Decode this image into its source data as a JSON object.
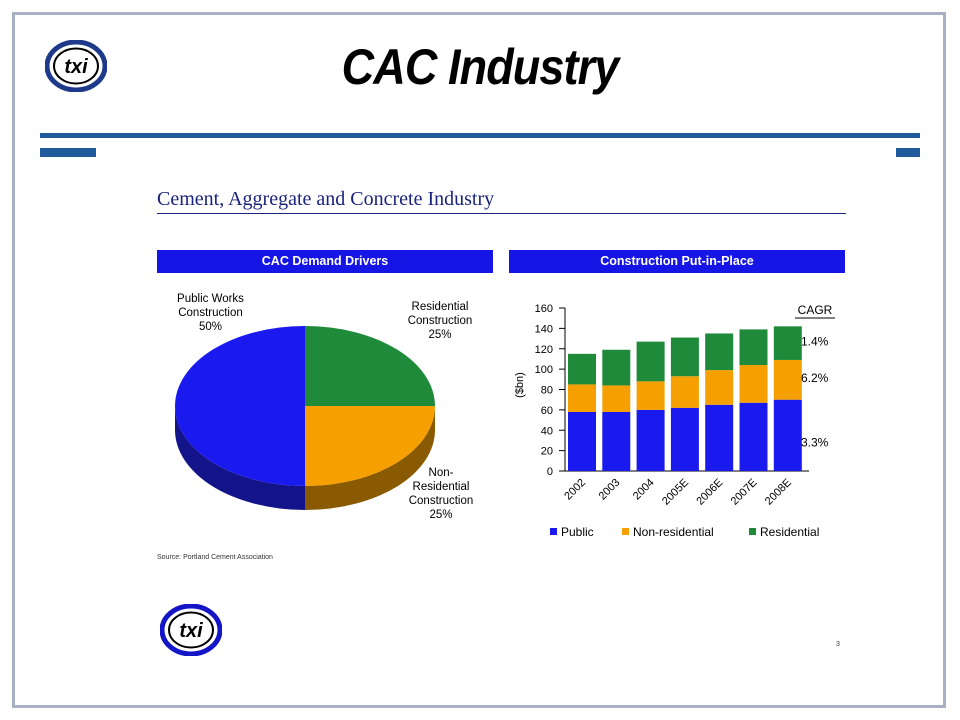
{
  "slide": {
    "title": "CAC Industry",
    "subtitle": "Cement, Aggregate and Concrete Industry",
    "logo_text": "txi",
    "source": "Source:  Portland Cement Association",
    "page_number": "3",
    "colors": {
      "rule": "#1f5a9c",
      "header_bar": "#1515e6",
      "public": "#1a1aee",
      "non_residential": "#f5a000",
      "residential": "#1f8a3a"
    }
  },
  "chart_data": [
    {
      "type": "pie",
      "title": "CAC Demand Drivers",
      "slices": [
        {
          "label_lines": [
            "Public Works",
            "Construction",
            "50%"
          ],
          "value": 50
        },
        {
          "label_lines": [
            "Residential",
            "Construction",
            "25%"
          ],
          "value": 25
        },
        {
          "label_lines": [
            "Non-",
            "Residential",
            "Construction",
            "25%"
          ],
          "value": 25
        }
      ]
    },
    {
      "type": "bar",
      "stacked": true,
      "title": "Construction Put-in-Place",
      "ylabel": "($bn)",
      "categories": [
        "2002",
        "2003",
        "2004",
        "2005E",
        "2006E",
        "2007E",
        "2008E"
      ],
      "series": [
        {
          "name": "Public",
          "values": [
            58,
            58,
            60,
            62,
            65,
            67,
            70
          ]
        },
        {
          "name": "Non-residential",
          "values": [
            27,
            26,
            28,
            31,
            34,
            37,
            39
          ]
        },
        {
          "name": "Residential",
          "values": [
            30,
            35,
            39,
            38,
            36,
            35,
            33
          ]
        }
      ],
      "ylim": [
        0,
        160
      ],
      "yticks": [
        0,
        20,
        40,
        60,
        80,
        100,
        120,
        140,
        160
      ],
      "cagr_header": "CAGR",
      "cagr": [
        "1.4%",
        "6.2%",
        "3.3%"
      ],
      "legend_position": "bottom"
    }
  ]
}
